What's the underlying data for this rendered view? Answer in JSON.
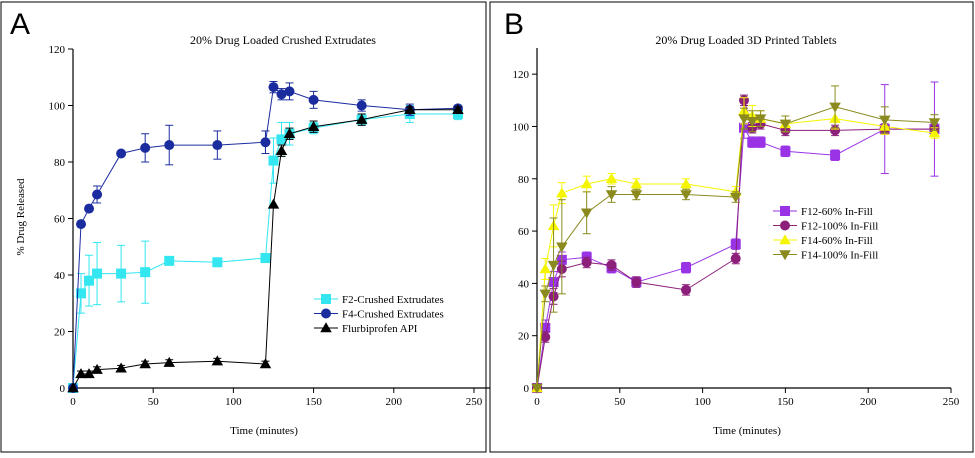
{
  "chart_data": [
    {
      "panel_label": "A",
      "type": "line",
      "title": "20% Drug Loaded Crushed Extrudates",
      "xlabel": "Time (minutes)",
      "ylabel": "% Drug Released",
      "xlim": [
        0,
        260
      ],
      "ylim": [
        0,
        120
      ],
      "xticks": [
        0,
        50,
        100,
        150,
        200,
        250
      ],
      "yticks": [
        0,
        20,
        40,
        60,
        80,
        100,
        120
      ],
      "grid": false,
      "legend_position": "bottom-right",
      "series": [
        {
          "name": "F2-Crushed Extrudates",
          "color": "#33e6f0",
          "marker": "square",
          "x": [
            0,
            5,
            10,
            15,
            30,
            45,
            60,
            90,
            120,
            125,
            130,
            135,
            150,
            180,
            210,
            240
          ],
          "y": [
            0,
            33.5,
            38,
            40.5,
            40.5,
            41,
            45,
            44.5,
            46,
            80.5,
            88,
            90,
            92,
            95,
            97,
            97
          ],
          "err": [
            0,
            7,
            9,
            11,
            10,
            11,
            0,
            0,
            0,
            8,
            6,
            4,
            2,
            2,
            3,
            2
          ]
        },
        {
          "name": "F4-Crushed Extrudates",
          "color": "#1b2c9e",
          "marker": "circle",
          "x": [
            0,
            5,
            10,
            15,
            30,
            45,
            60,
            90,
            120,
            125,
            130,
            135,
            150,
            180,
            210,
            240
          ],
          "y": [
            0,
            58,
            63.5,
            68.5,
            83,
            85,
            86,
            86,
            87,
            106.5,
            104,
            105,
            102,
            100,
            98.5,
            99
          ],
          "err": [
            0,
            0,
            0,
            3,
            0,
            5,
            7,
            5,
            4,
            2,
            2,
            3,
            3,
            2,
            2,
            1
          ]
        },
        {
          "name": "Flurbiprofen API",
          "color": "#000000",
          "marker": "triangle",
          "x": [
            0,
            5,
            10,
            15,
            30,
            45,
            60,
            90,
            120,
            125,
            130,
            135,
            150,
            180,
            210,
            240
          ],
          "y": [
            0,
            5,
            5,
            6.5,
            7,
            8.5,
            9,
            9.5,
            8.5,
            65,
            84,
            90,
            92.5,
            95,
            98.5,
            98.5
          ],
          "err": [
            0,
            1,
            1,
            1,
            1,
            1,
            1,
            1,
            1,
            0,
            2,
            2,
            2,
            2,
            1,
            1
          ]
        }
      ]
    },
    {
      "panel_label": "B",
      "type": "line",
      "title": "20% Drug Loaded 3D Printed Tablets",
      "xlabel": "Time (minutes)",
      "ylabel": "",
      "xlim": [
        0,
        250
      ],
      "ylim": [
        0,
        130
      ],
      "xticks": [
        0,
        50,
        100,
        150,
        200,
        250
      ],
      "yticks": [
        0,
        20,
        40,
        60,
        80,
        100,
        120
      ],
      "grid": false,
      "legend_position": "center-right",
      "series": [
        {
          "name": "F12-60% In-Fill",
          "color": "#9a33e6",
          "marker": "square",
          "x": [
            0,
            5,
            10,
            15,
            30,
            45,
            60,
            90,
            120,
            125,
            130,
            135,
            150,
            180,
            210,
            240
          ],
          "y": [
            0,
            23,
            40.5,
            49,
            50,
            46,
            40.5,
            46,
            55,
            99.5,
            94,
            94,
            90.5,
            89,
            99,
            99
          ],
          "err": [
            0,
            3,
            4,
            3,
            2,
            2,
            2,
            2,
            2,
            4,
            2,
            2,
            2,
            2,
            17,
            18
          ]
        },
        {
          "name": "F12-100% In-Fill",
          "color": "#8b1f7a",
          "marker": "circle",
          "x": [
            0,
            5,
            10,
            15,
            30,
            45,
            60,
            90,
            120,
            125,
            130,
            135,
            150,
            180,
            210,
            240
          ],
          "y": [
            0,
            19.5,
            35,
            45.5,
            48,
            47,
            40.5,
            37.5,
            49.5,
            110,
            99.5,
            101,
            98.5,
            98.5,
            99,
            99
          ],
          "err": [
            0,
            2,
            3,
            3,
            2,
            2,
            2,
            2,
            2,
            2,
            2,
            2,
            2,
            2,
            2,
            2
          ]
        },
        {
          "name": "F14-60% In-Fill",
          "color": "#f5f500",
          "marker": "triangle",
          "x": [
            0,
            5,
            10,
            15,
            30,
            45,
            60,
            90,
            120,
            125,
            130,
            135,
            150,
            180,
            210,
            240
          ],
          "y": [
            0,
            45.5,
            62,
            74.5,
            78,
            80,
            78,
            78,
            75,
            106,
            104,
            103,
            101,
            103,
            100,
            97.5
          ],
          "err": [
            0,
            4,
            8,
            4,
            3,
            2,
            2,
            2,
            2,
            5,
            4,
            3,
            3,
            4,
            3,
            2
          ]
        },
        {
          "name": "F14-100% In-Fill",
          "color": "#8a8a1e",
          "marker": "triangle-down",
          "x": [
            0,
            5,
            10,
            15,
            30,
            45,
            60,
            90,
            120,
            125,
            130,
            135,
            150,
            180,
            210,
            240
          ],
          "y": [
            0,
            36,
            47,
            54,
            67,
            74,
            74,
            74,
            73,
            103,
            102,
            103,
            101,
            107.5,
            102.5,
            101.5
          ],
          "err": [
            0,
            3,
            18,
            18,
            8,
            3,
            2,
            2,
            2,
            4,
            4,
            3,
            3,
            8,
            5,
            3
          ]
        }
      ]
    }
  ]
}
